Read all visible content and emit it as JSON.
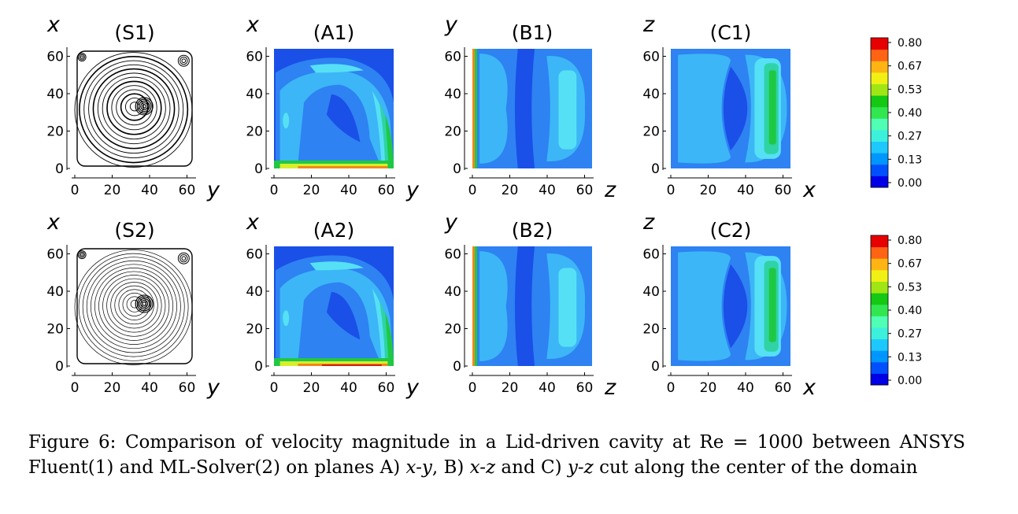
{
  "figure": {
    "tick_values": [
      "0",
      "20",
      "40",
      "60"
    ],
    "rows": [
      {
        "panels": [
          {
            "id": "S1",
            "title": "(S1)",
            "kind": "streamline",
            "vertical_axis": "x",
            "horizontal_axis": "y"
          },
          {
            "id": "A1",
            "title": "(A1)",
            "kind": "contour-xy",
            "vertical_axis": "x",
            "horizontal_axis": "y"
          },
          {
            "id": "B1",
            "title": "(B1)",
            "kind": "contour-xz",
            "vertical_axis": "y",
            "horizontal_axis": "z"
          },
          {
            "id": "C1",
            "title": "(C1)",
            "kind": "contour-yz",
            "vertical_axis": "z",
            "horizontal_axis": "x"
          }
        ]
      },
      {
        "panels": [
          {
            "id": "S2",
            "title": "(S2)",
            "kind": "streamline",
            "vertical_axis": "x",
            "horizontal_axis": "y"
          },
          {
            "id": "A2",
            "title": "(A2)",
            "kind": "contour-xy",
            "vertical_axis": "x",
            "horizontal_axis": "y"
          },
          {
            "id": "B2",
            "title": "(B2)",
            "kind": "contour-xz",
            "vertical_axis": "y",
            "horizontal_axis": "z"
          },
          {
            "id": "C2",
            "title": "(C2)",
            "kind": "contour-yz",
            "vertical_axis": "z",
            "horizontal_axis": "x"
          }
        ]
      }
    ],
    "colorbar": {
      "labels": [
        "0.80",
        "0.67",
        "0.53",
        "0.40",
        "0.27",
        "0.13",
        "0.00"
      ],
      "colors": [
        "#0000e6",
        "#0050ff",
        "#0096ff",
        "#1ec8ff",
        "#3cf0dc",
        "#50ffb4",
        "#32e650",
        "#14c814",
        "#a0e614",
        "#f0f014",
        "#ffb414",
        "#ff6414",
        "#e60000"
      ]
    },
    "contour_colors": {
      "dark": "#1a4fe8",
      "mid": "#2e82f2",
      "light": "#3cb6f7",
      "cyan": "#56e0f5",
      "teal": "#2fd3a6",
      "green": "#1fc843",
      "yellow": "#d7ee2a",
      "orange": "#f08a1a",
      "red": "#d41e10"
    }
  },
  "caption": {
    "label": "Figure 6:",
    "text_1": "Comparison of velocity magnitude in a Lid-driven cavity at Re = 1000 between ANSYS Fluent(1) and ML-Solver(2) on planes A) ",
    "plane_a": "x-y",
    "text_2": ", B) ",
    "plane_b": "x-z",
    "text_3": " and C) ",
    "plane_c": "y-z",
    "text_4": " cut along the center of the domain"
  }
}
